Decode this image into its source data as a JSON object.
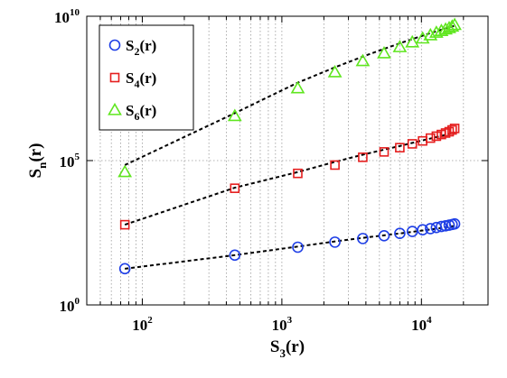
{
  "chart_data": {
    "type": "scatter",
    "xlabel": {
      "main": "S",
      "sub": "3",
      "suffix": "(r)"
    },
    "ylabel": {
      "main": "S",
      "sub": "n",
      "suffix": "(r)"
    },
    "x_scale": "log",
    "y_scale": "log",
    "xlim": [
      40,
      30000
    ],
    "ylim": [
      1,
      10000000000
    ],
    "x_ticks": [
      {
        "base": "10",
        "exp": "2",
        "value": 100
      },
      {
        "base": "10",
        "exp": "3",
        "value": 1000
      },
      {
        "base": "10",
        "exp": "4",
        "value": 10000
      }
    ],
    "y_ticks": [
      {
        "base": "10",
        "exp": "0",
        "value": 1
      },
      {
        "base": "10",
        "exp": "5",
        "value": 100000
      },
      {
        "base": "10",
        "exp": "10",
        "value": 10000000000
      }
    ],
    "grid": "x-major-minor-dotted",
    "legend_position": "top-left",
    "x": [
      75,
      460,
      1300,
      2400,
      3800,
      5400,
      7000,
      8600,
      10200,
      11600,
      12800,
      13900,
      14900,
      15800,
      16600,
      17300
    ],
    "series": [
      {
        "label": {
          "main": "S",
          "sub": "2",
          "suffix": "(r)"
        },
        "marker": "circle",
        "color": "#1f3fe6",
        "values": [
          18,
          53,
          100,
          150,
          200,
          250,
          300,
          350,
          400,
          440,
          480,
          520,
          550,
          580,
          610,
          640
        ],
        "fit": [
          18,
          53,
          105,
          158,
          210,
          258,
          300,
          340,
          378,
          410,
          438,
          464,
          488,
          510,
          530,
          548
        ]
      },
      {
        "label": {
          "main": "S",
          "sub": "4",
          "suffix": "(r)"
        },
        "marker": "square",
        "color": "#e51f1f",
        "values": [
          600,
          11000,
          36000,
          70000,
          130000,
          200000,
          280000,
          380000,
          480000,
          600000,
          700000,
          800000,
          900000,
          1000000,
          1150000,
          1300000
        ],
        "fit": [
          600,
          11500,
          40000,
          90000,
          160000,
          240000,
          320000,
          410000,
          500000,
          580000,
          650000,
          720000,
          780000,
          840000,
          900000,
          950000
        ]
      },
      {
        "label": {
          "main": "S",
          "sub": "6",
          "suffix": "(r)"
        },
        "marker": "triangle",
        "color": "#5fe61f",
        "values": [
          40000,
          3500000,
          32000000,
          115000000,
          280000000,
          520000000,
          850000000,
          1250000000,
          1700000000,
          2200000000,
          2700000000,
          3100000000,
          3500000000,
          3900000000,
          4400000000,
          5000000000
        ],
        "fit": [
          70000,
          4400000,
          50000000,
          170000000,
          400000000,
          740000000,
          1150000000,
          1620000000,
          2120000000,
          2600000000,
          3000000000,
          3400000000,
          3800000000,
          4100000000,
          4400000000,
          4700000000
        ]
      }
    ]
  }
}
